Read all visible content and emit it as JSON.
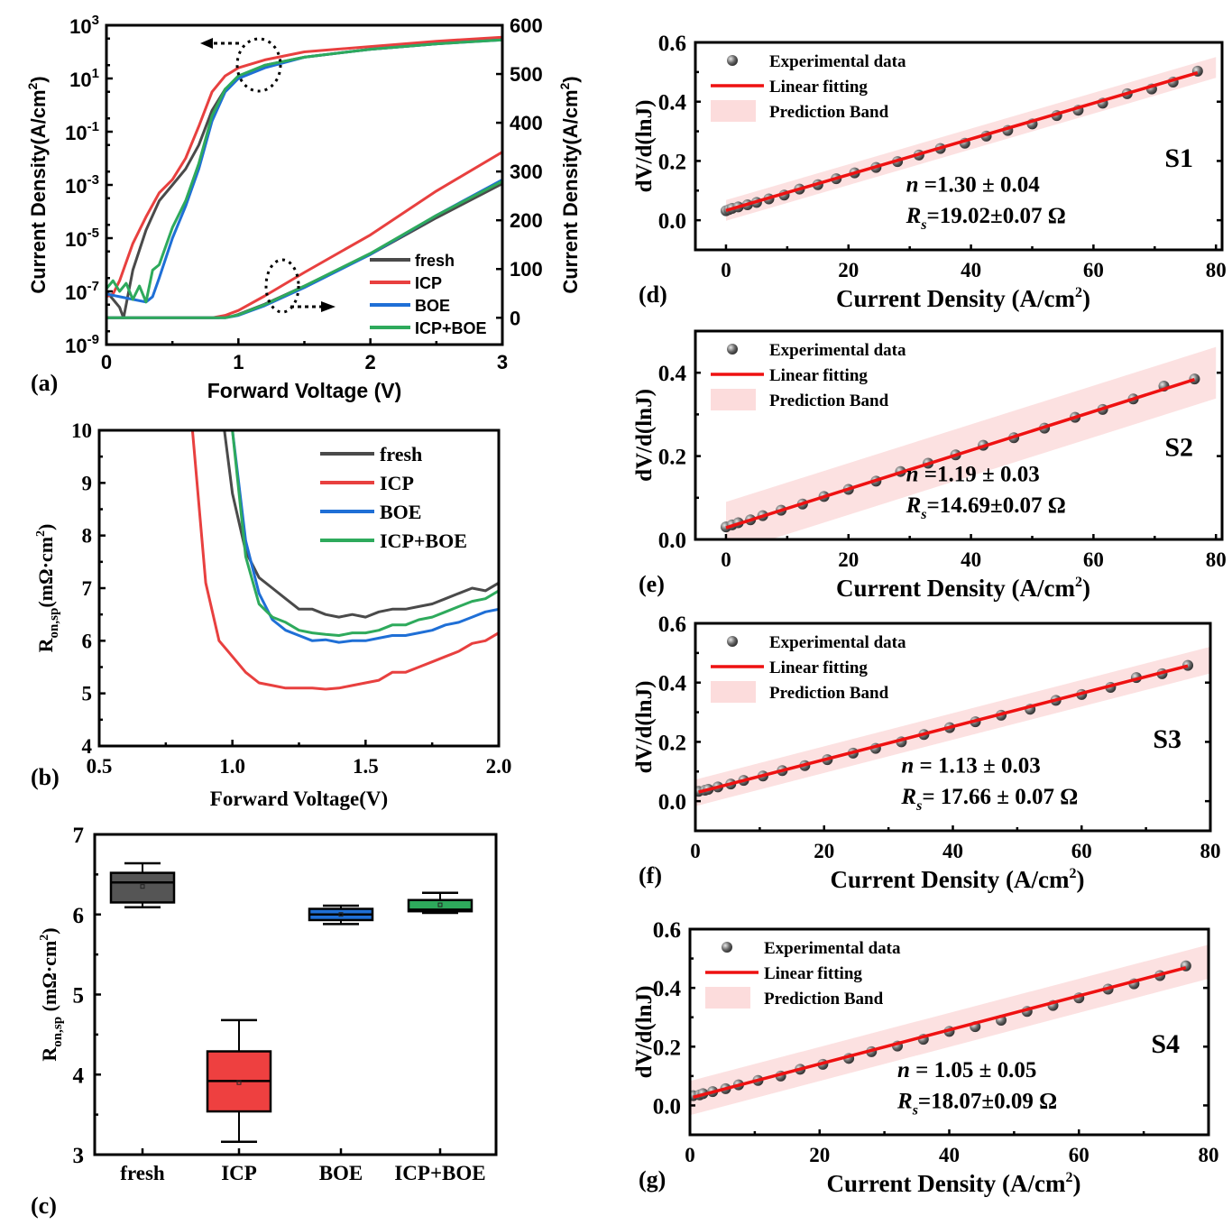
{
  "chart_data": [
    {
      "id": "a",
      "panel_label": "(a)",
      "type": "line",
      "xlabel": "Forward Voltage (V)",
      "ylabel_left": "Current Density(A/cm2)",
      "ylabel_right": "Current Density(A/cm2)",
      "xlim": [
        0,
        3
      ],
      "ylim_left_log10": [
        -9,
        3
      ],
      "ylim_right": [
        -55,
        600
      ],
      "x_ticks": [
        "0",
        "1",
        "2",
        "3"
      ],
      "y_ticks_left": [
        "10^3",
        "10^1",
        "10^-1",
        "10^-3",
        "10^-5",
        "10^-7",
        "10^-9"
      ],
      "y_ticks_right": [
        "600",
        "500",
        "400",
        "300",
        "200",
        "100",
        "0"
      ],
      "legend": [
        "fresh",
        "ICP",
        "BOE",
        "ICP+BOE"
      ],
      "legend_position": "bottom-right",
      "annotations": [
        "dotted circle with arrow pointing left (log axis)",
        "dotted circle with arrow pointing right (linear axis)"
      ],
      "series_log": [
        {
          "name": "fresh",
          "color": "#4a4a4a",
          "x": [
            0.0,
            0.1,
            0.13,
            0.2,
            0.3,
            0.4,
            0.5,
            0.6,
            0.7,
            0.8,
            0.9,
            1.0,
            1.2,
            1.5,
            2.0,
            2.5,
            3.0
          ],
          "log10y": [
            -7.0,
            -7.6,
            -8.0,
            -6.2,
            -4.7,
            -3.6,
            -3.0,
            -2.4,
            -1.5,
            -0.2,
            0.6,
            1.0,
            1.5,
            1.8,
            2.1,
            2.3,
            2.5
          ]
        },
        {
          "name": "ICP",
          "color": "#e8403f",
          "x": [
            0.0,
            0.05,
            0.1,
            0.2,
            0.3,
            0.4,
            0.5,
            0.6,
            0.7,
            0.8,
            0.9,
            1.0,
            1.2,
            1.5,
            2.0,
            2.5,
            3.0
          ],
          "log10y": [
            -7.2,
            -7.1,
            -6.6,
            -5.2,
            -4.2,
            -3.3,
            -2.8,
            -2.0,
            -0.8,
            0.5,
            1.1,
            1.4,
            1.7,
            2.0,
            2.2,
            2.4,
            2.55
          ]
        },
        {
          "name": "BOE",
          "color": "#1f6fd6",
          "x": [
            0.0,
            0.1,
            0.2,
            0.3,
            0.35,
            0.4,
            0.5,
            0.6,
            0.7,
            0.8,
            0.9,
            1.0,
            1.2,
            1.5,
            2.0,
            2.5,
            3.0
          ],
          "log10y": [
            -7.1,
            -7.2,
            -7.3,
            -7.4,
            -7.2,
            -6.5,
            -5.0,
            -3.8,
            -2.4,
            -0.6,
            0.5,
            1.0,
            1.4,
            1.8,
            2.1,
            2.3,
            2.45
          ]
        },
        {
          "name": "ICP+BOE",
          "color": "#2eaa5c",
          "x": [
            0.0,
            0.05,
            0.1,
            0.15,
            0.2,
            0.25,
            0.3,
            0.35,
            0.4,
            0.5,
            0.6,
            0.7,
            0.8,
            0.9,
            1.0,
            1.2,
            1.5,
            2.0,
            2.5,
            3.0
          ],
          "log10y": [
            -6.9,
            -6.6,
            -7.0,
            -6.7,
            -7.3,
            -6.8,
            -7.4,
            -6.2,
            -6.0,
            -4.6,
            -3.6,
            -2.2,
            -0.4,
            0.6,
            1.1,
            1.5,
            1.8,
            2.1,
            2.3,
            2.45
          ]
        }
      ],
      "series_linear": [
        {
          "name": "fresh",
          "color": "#4a4a4a",
          "x": [
            0,
            0.85,
            0.95,
            1.0,
            1.2,
            1.5,
            2.0,
            2.5,
            3.0
          ],
          "y": [
            0,
            0,
            3,
            7,
            28,
            65,
            130,
            205,
            275
          ]
        },
        {
          "name": "ICP",
          "color": "#e8403f",
          "x": [
            0,
            0.8,
            0.9,
            1.0,
            1.2,
            1.5,
            2.0,
            2.5,
            3.0
          ],
          "y": [
            0,
            0,
            5,
            15,
            45,
            93,
            170,
            260,
            340
          ]
        },
        {
          "name": "BOE",
          "color": "#1f6fd6",
          "x": [
            0,
            0.9,
            1.0,
            1.2,
            1.5,
            2.0,
            2.5,
            3.0
          ],
          "y": [
            0,
            0,
            5,
            25,
            62,
            130,
            210,
            283
          ]
        },
        {
          "name": "ICP+BOE",
          "color": "#2eaa5c",
          "x": [
            0,
            0.9,
            1.0,
            1.2,
            1.5,
            2.0,
            2.5,
            3.0
          ],
          "y": [
            0,
            0,
            6,
            27,
            65,
            132,
            210,
            280
          ]
        }
      ]
    },
    {
      "id": "b",
      "panel_label": "(b)",
      "type": "line",
      "xlabel": "Forward Voltage(V)",
      "ylabel": "Ron,sp(mΩ·cm2)",
      "xlim": [
        0.5,
        2.0
      ],
      "ylim": [
        4,
        10
      ],
      "x_ticks": [
        "0.5",
        "1.0",
        "1.5",
        "2.0"
      ],
      "y_ticks": [
        "4",
        "5",
        "6",
        "7",
        "8",
        "9",
        "10"
      ],
      "legend": [
        "fresh",
        "ICP",
        "BOE",
        "ICP+BOE"
      ],
      "legend_position": "top-right",
      "series": [
        {
          "name": "fresh",
          "color": "#4a4a4a",
          "x": [
            0.97,
            1.0,
            1.05,
            1.1,
            1.15,
            1.2,
            1.25,
            1.3,
            1.35,
            1.4,
            1.45,
            1.5,
            1.55,
            1.6,
            1.65,
            1.7,
            1.75,
            1.8,
            1.85,
            1.9,
            1.95,
            2.0
          ],
          "y": [
            10,
            8.8,
            7.7,
            7.2,
            7.0,
            6.8,
            6.6,
            6.6,
            6.5,
            6.45,
            6.5,
            6.45,
            6.55,
            6.6,
            6.6,
            6.65,
            6.7,
            6.8,
            6.9,
            7.0,
            6.95,
            7.1
          ]
        },
        {
          "name": "ICP",
          "color": "#e8403f",
          "x": [
            0.85,
            0.9,
            0.95,
            1.0,
            1.05,
            1.1,
            1.15,
            1.2,
            1.25,
            1.3,
            1.35,
            1.4,
            1.45,
            1.5,
            1.55,
            1.6,
            1.65,
            1.7,
            1.75,
            1.8,
            1.85,
            1.9,
            1.95,
            2.0
          ],
          "y": [
            10,
            7.1,
            6.0,
            5.7,
            5.4,
            5.2,
            5.15,
            5.1,
            5.1,
            5.1,
            5.08,
            5.1,
            5.15,
            5.2,
            5.25,
            5.4,
            5.4,
            5.5,
            5.6,
            5.7,
            5.8,
            5.95,
            6.0,
            6.15
          ]
        },
        {
          "name": "BOE",
          "color": "#1f6fd6",
          "x": [
            1.0,
            1.05,
            1.1,
            1.15,
            1.2,
            1.25,
            1.3,
            1.35,
            1.4,
            1.45,
            1.5,
            1.55,
            1.6,
            1.65,
            1.7,
            1.75,
            1.8,
            1.85,
            1.9,
            1.95,
            2.0
          ],
          "y": [
            10,
            7.9,
            6.9,
            6.4,
            6.2,
            6.1,
            6.0,
            6.02,
            5.97,
            6.0,
            6.0,
            6.05,
            6.1,
            6.1,
            6.15,
            6.2,
            6.3,
            6.35,
            6.45,
            6.55,
            6.6
          ]
        },
        {
          "name": "ICP+BOE",
          "color": "#2eaa5c",
          "x": [
            1.0,
            1.05,
            1.1,
            1.15,
            1.2,
            1.25,
            1.3,
            1.35,
            1.4,
            1.45,
            1.5,
            1.55,
            1.6,
            1.65,
            1.7,
            1.75,
            1.8,
            1.85,
            1.9,
            1.95,
            2.0
          ],
          "y": [
            10,
            7.6,
            6.7,
            6.45,
            6.35,
            6.2,
            6.15,
            6.12,
            6.1,
            6.15,
            6.15,
            6.2,
            6.3,
            6.3,
            6.4,
            6.45,
            6.55,
            6.65,
            6.75,
            6.8,
            6.95
          ]
        }
      ]
    },
    {
      "id": "c",
      "panel_label": "(c)",
      "type": "box",
      "ylabel": "Ron,sp (mΩ·cm2)",
      "ylim": [
        3,
        7
      ],
      "y_ticks": [
        "3",
        "4",
        "5",
        "6",
        "7"
      ],
      "categories": [
        "fresh",
        "ICP",
        "BOE",
        "ICP+BOE"
      ],
      "boxes": [
        {
          "name": "fresh",
          "color": "#555555",
          "whisker_low": 6.09,
          "q1": 6.15,
          "median": 6.4,
          "q3": 6.52,
          "whisker_high": 6.64,
          "mean": 6.35
        },
        {
          "name": "ICP",
          "color": "#ee4040",
          "whisker_low": 3.16,
          "q1": 3.54,
          "median": 3.92,
          "q3": 4.29,
          "whisker_high": 4.68,
          "mean": 3.9
        },
        {
          "name": "BOE",
          "color": "#1f6fd6",
          "whisker_low": 5.88,
          "q1": 5.93,
          "median": 6.0,
          "q3": 6.07,
          "whisker_high": 6.11,
          "mean": 6.0
        },
        {
          "name": "ICP+BOE",
          "color": "#2eaa5c",
          "whisker_low": 6.02,
          "q1": 6.04,
          "median": 6.06,
          "q3": 6.18,
          "whisker_high": 6.27,
          "mean": 6.12
        }
      ]
    },
    {
      "id": "d",
      "panel_label": "(d)",
      "type": "scatter",
      "sample": "S1",
      "xlabel": "Current Density (A/cm2)",
      "ylabel": "dV/d(lnJ)",
      "xlim": [
        -5,
        81
      ],
      "ylim": [
        -0.1,
        0.6
      ],
      "x_ticks": [
        "0",
        "20",
        "40",
        "60",
        "80"
      ],
      "y_ticks": [
        "0.0",
        "0.2",
        "0.4",
        "0.6"
      ],
      "legend": [
        "Experimental data",
        "Linear fitting",
        "Prediction Band"
      ],
      "n_text": "=1.30 ± 0.04",
      "rs_text": "=19.02±0.07 Ω",
      "fit": {
        "intercept": 0.033,
        "slope": 0.00603,
        "band": 0.035
      },
      "x": [
        0,
        0.5,
        1,
        2,
        3.5,
        5,
        7,
        9.5,
        12,
        15,
        18,
        21,
        24.5,
        28,
        31.5,
        35,
        39,
        42.5,
        46,
        50,
        54,
        57.5,
        61.5,
        65.5,
        69.5,
        73,
        77
      ],
      "y": [
        0.032,
        0.036,
        0.04,
        0.045,
        0.052,
        0.06,
        0.072,
        0.085,
        0.105,
        0.12,
        0.14,
        0.16,
        0.178,
        0.198,
        0.22,
        0.242,
        0.26,
        0.284,
        0.303,
        0.325,
        0.353,
        0.371,
        0.395,
        0.427,
        0.443,
        0.466,
        0.503
      ]
    },
    {
      "id": "e",
      "panel_label": "(e)",
      "type": "scatter",
      "sample": "S2",
      "xlabel": "Current Density (A/cm2)",
      "ylabel": "dV/d(lnJ)",
      "xlim": [
        -5,
        81
      ],
      "ylim": [
        0.0,
        0.5
      ],
      "x_ticks": [
        "0",
        "20",
        "40",
        "60",
        "80"
      ],
      "y_ticks": [
        "0.0",
        "0.2",
        "0.4"
      ],
      "legend": [
        "Experimental data",
        "Linear fitting",
        "Prediction Band"
      ],
      "n_text": "=1.19 ± 0.03",
      "rs_text": "=14.69±0.07 Ω",
      "fit": {
        "intercept": 0.028,
        "slope": 0.00465,
        "band": 0.062
      },
      "x": [
        0,
        1,
        2,
        4,
        6,
        9,
        12.5,
        16,
        20,
        24.5,
        28.5,
        33,
        37.5,
        42,
        47,
        52,
        57,
        61.5,
        66.5,
        71.5,
        76.5
      ],
      "y": [
        0.03,
        0.035,
        0.04,
        0.047,
        0.057,
        0.07,
        0.085,
        0.103,
        0.12,
        0.14,
        0.163,
        0.183,
        0.203,
        0.226,
        0.244,
        0.267,
        0.293,
        0.312,
        0.337,
        0.368,
        0.385
      ]
    },
    {
      "id": "f",
      "panel_label": "(f)",
      "type": "scatter",
      "sample": "S3",
      "xlabel": "Current Density (A/cm2)",
      "ylabel": "dV/d(lnJ)",
      "xlim": [
        0,
        80
      ],
      "ylim": [
        -0.1,
        0.6
      ],
      "x_ticks": [
        "0",
        "20",
        "40",
        "60",
        "80"
      ],
      "y_ticks": [
        "0.0",
        "0.2",
        "0.4",
        "0.6"
      ],
      "legend": [
        "Experimental data",
        "Linear fitting",
        "Prediction Band"
      ],
      "n_text": "= 1.13 ± 0.03",
      "rs_text": "= 17.66 ± 0.07 Ω",
      "fit": {
        "intercept": 0.028,
        "slope": 0.0056,
        "band": 0.045
      },
      "x": [
        0.5,
        1.5,
        2,
        3.5,
        5.5,
        7.5,
        10.5,
        13.5,
        17,
        20.5,
        24.5,
        28,
        32,
        35.5,
        39.5,
        43.5,
        47.5,
        52,
        56,
        60,
        64.5,
        68.5,
        72.5,
        76.5
      ],
      "y": [
        0.033,
        0.037,
        0.04,
        0.048,
        0.058,
        0.07,
        0.085,
        0.103,
        0.12,
        0.14,
        0.162,
        0.178,
        0.2,
        0.225,
        0.248,
        0.268,
        0.29,
        0.31,
        0.34,
        0.36,
        0.384,
        0.417,
        0.43,
        0.458
      ]
    },
    {
      "id": "g",
      "panel_label": "(g)",
      "type": "scatter",
      "sample": "S4",
      "xlabel": "Current Density (A/cm2)",
      "ylabel": "dV/d(lnJ)",
      "xlim": [
        0,
        80
      ],
      "ylim": [
        -0.1,
        0.6
      ],
      "x_ticks": [
        "0",
        "20",
        "40",
        "60",
        "80"
      ],
      "y_ticks": [
        "0.0",
        "0.2",
        "0.4",
        "0.6"
      ],
      "legend": [
        "Experimental data",
        "Linear fitting",
        "Prediction Band"
      ],
      "n_text": "= 1.05 ± 0.05",
      "rs_text": "=18.07±0.09 Ω",
      "fit": {
        "intercept": 0.025,
        "slope": 0.0058,
        "band": 0.058
      },
      "x": [
        0.5,
        1.5,
        2,
        3.5,
        5.5,
        7.5,
        10.5,
        14,
        17,
        20.5,
        24.5,
        28,
        32,
        36,
        40,
        44,
        48,
        52,
        56,
        60,
        64.5,
        68.5,
        72.5,
        76.5
      ],
      "y": [
        0.033,
        0.036,
        0.04,
        0.047,
        0.057,
        0.07,
        0.085,
        0.1,
        0.123,
        0.14,
        0.16,
        0.183,
        0.202,
        0.225,
        0.252,
        0.268,
        0.29,
        0.32,
        0.34,
        0.366,
        0.396,
        0.414,
        0.442,
        0.475
      ]
    }
  ]
}
